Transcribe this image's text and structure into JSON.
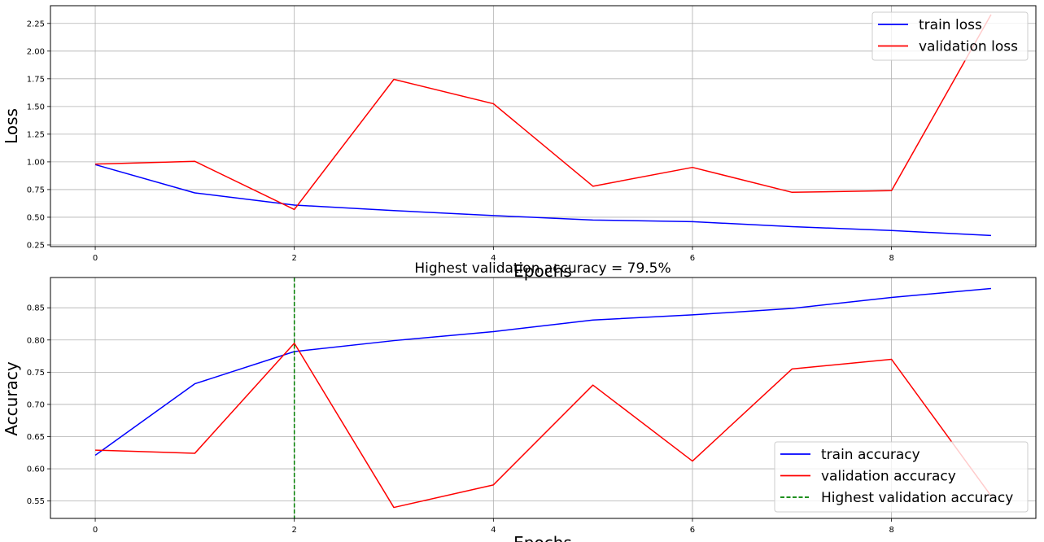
{
  "chart_data": [
    {
      "type": "line",
      "title": "",
      "xlabel": "Epochs",
      "ylabel": "Loss",
      "xlim": [
        -0.45,
        9.45
      ],
      "ylim": [
        0.235,
        2.41
      ],
      "x": [
        0,
        1,
        2,
        3,
        4,
        5,
        6,
        7,
        8,
        9
      ],
      "xticks": [
        0,
        2,
        4,
        6,
        8
      ],
      "yticks": [
        0.25,
        0.5,
        0.75,
        1.0,
        1.25,
        1.5,
        1.75,
        2.0,
        2.25
      ],
      "ytick_labels": [
        "0.25",
        "0.50",
        "0.75",
        "1.00",
        "1.25",
        "1.50",
        "1.75",
        "2.00",
        "2.25"
      ],
      "grid": true,
      "legend_position": "top-right",
      "series": [
        {
          "name": "train loss",
          "color": "#0000ff",
          "values": [
            0.975,
            0.72,
            0.61,
            0.56,
            0.515,
            0.475,
            0.46,
            0.415,
            0.38,
            0.335
          ]
        },
        {
          "name": "validation loss",
          "color": "#ff0000",
          "values": [
            0.98,
            1.005,
            0.57,
            1.745,
            1.525,
            0.78,
            0.95,
            0.725,
            0.74,
            2.33
          ]
        }
      ]
    },
    {
      "type": "line",
      "title": "Highest validation accuracy = 79.5%",
      "xlabel": "Epochs",
      "ylabel": "Accuracy",
      "xlim": [
        -0.45,
        9.45
      ],
      "ylim": [
        0.523,
        0.897
      ],
      "x": [
        0,
        1,
        2,
        3,
        4,
        5,
        6,
        7,
        8,
        9
      ],
      "xticks": [
        0,
        2,
        4,
        6,
        8
      ],
      "yticks": [
        0.55,
        0.6,
        0.65,
        0.7,
        0.75,
        0.8,
        0.85
      ],
      "ytick_labels": [
        "0.55",
        "0.60",
        "0.65",
        "0.70",
        "0.75",
        "0.80",
        "0.85"
      ],
      "grid": true,
      "legend_position": "bottom-right",
      "series": [
        {
          "name": "train accuracy",
          "color": "#0000ff",
          "values": [
            0.621,
            0.732,
            0.782,
            0.799,
            0.813,
            0.831,
            0.839,
            0.849,
            0.866,
            0.88
          ]
        },
        {
          "name": "validation accuracy",
          "color": "#ff0000",
          "values": [
            0.629,
            0.624,
            0.795,
            0.54,
            0.575,
            0.73,
            0.612,
            0.755,
            0.77,
            0.558
          ]
        }
      ],
      "vline": {
        "name": "Highest validation accuracy",
        "color": "#008000",
        "x": 2,
        "style": "dashed"
      }
    }
  ]
}
